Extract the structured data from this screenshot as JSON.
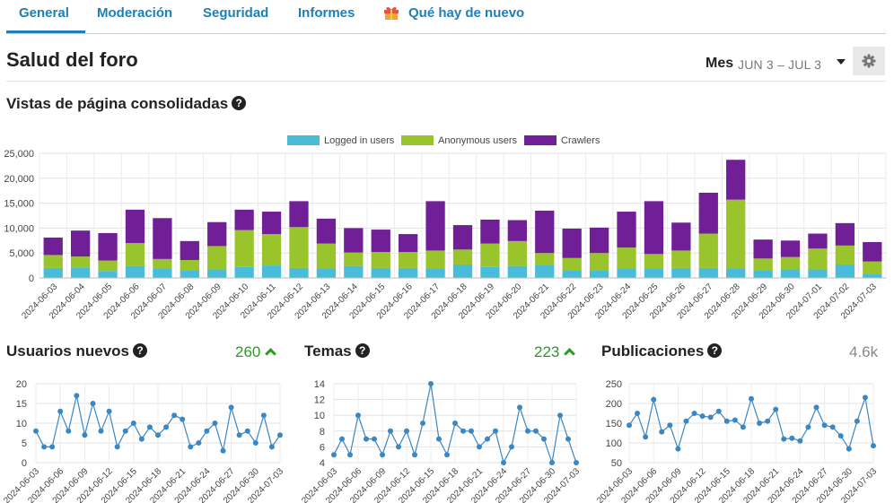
{
  "nav": {
    "tabs": [
      {
        "label": "General",
        "active": true
      },
      {
        "label": "Moderación"
      },
      {
        "label": "Seguridad"
      },
      {
        "label": "Informes"
      },
      {
        "label": "Qué hay de nuevo",
        "icon": "gift-icon"
      }
    ]
  },
  "header": {
    "title": "Salud del foro",
    "period_label": "Mes",
    "date_range": "JUN 3 – JUL 3"
  },
  "colors": {
    "accent": "#1e7fb8",
    "logged_in": "#48bcd8",
    "anonymous": "#9ac42c",
    "crawlers": "#711f96",
    "line": "#3a87c4",
    "trend_up": "#2a9d1f"
  },
  "pageviews": {
    "title": "Vistas de página consolidadas"
  },
  "new_users": {
    "title": "Usuarios nuevos",
    "value": "260",
    "trend": "up"
  },
  "topics": {
    "title": "Temas",
    "value": "223",
    "trend": "up"
  },
  "posts": {
    "title": "Publicaciones",
    "value": "4.6k",
    "trend": "neutral"
  },
  "chart_data": [
    {
      "type": "bar",
      "stacked": true,
      "title": "Vistas de página consolidadas",
      "categories": [
        "2024-06-03",
        "2024-06-04",
        "2024-06-05",
        "2024-06-06",
        "2024-06-07",
        "2024-06-08",
        "2024-06-09",
        "2024-06-10",
        "2024-06-11",
        "2024-06-12",
        "2024-06-13",
        "2024-06-14",
        "2024-06-15",
        "2024-06-16",
        "2024-06-17",
        "2024-06-18",
        "2024-06-19",
        "2024-06-20",
        "2024-06-21",
        "2024-06-22",
        "2024-06-23",
        "2024-06-24",
        "2024-06-25",
        "2024-06-26",
        "2024-06-27",
        "2024-06-28",
        "2024-06-29",
        "2024-06-30",
        "2024-07-01",
        "2024-07-02",
        "2024-07-03"
      ],
      "series": [
        {
          "name": "Logged in users",
          "values": [
            2000,
            2100,
            1400,
            2400,
            1900,
            1600,
            1700,
            2200,
            2500,
            2000,
            1800,
            2400,
            2000,
            2000,
            1900,
            2700,
            2200,
            2400,
            2600,
            1600,
            1600,
            1800,
            1900,
            2000,
            2000,
            1900,
            1600,
            1700,
            1700,
            2700,
            800
          ]
        },
        {
          "name": "Anonymous users",
          "values": [
            2600,
            2200,
            2100,
            4600,
            1900,
            2000,
            4700,
            7400,
            6300,
            8200,
            5100,
            2700,
            3200,
            3200,
            3600,
            3000,
            4700,
            5000,
            2400,
            2400,
            3400,
            4300,
            2900,
            3500,
            6900,
            13800,
            2300,
            2500,
            4200,
            3800,
            2500
          ]
        },
        {
          "name": "Crawlers",
          "values": [
            3500,
            5200,
            5500,
            6700,
            8200,
            3800,
            4800,
            4100,
            4500,
            5200,
            5000,
            4900,
            4500,
            3600,
            9900,
            4900,
            4800,
            4200,
            8500,
            5900,
            5100,
            7200,
            10600,
            5600,
            8200,
            8000,
            3800,
            3300,
            3000,
            4500,
            3900
          ]
        }
      ],
      "legend": "top-center",
      "ylim": [
        0,
        25000
      ],
      "yticks": [
        "0",
        "5,000",
        "10,000",
        "15,000",
        "20,000",
        "25,000"
      ],
      "grid": true
    },
    {
      "type": "line",
      "title": "Usuarios nuevos",
      "x": [
        "2024-06-03",
        "2024-06-04",
        "2024-06-05",
        "2024-06-06",
        "2024-06-07",
        "2024-06-08",
        "2024-06-09",
        "2024-06-10",
        "2024-06-11",
        "2024-06-12",
        "2024-06-13",
        "2024-06-14",
        "2024-06-15",
        "2024-06-16",
        "2024-06-17",
        "2024-06-18",
        "2024-06-19",
        "2024-06-20",
        "2024-06-21",
        "2024-06-22",
        "2024-06-23",
        "2024-06-24",
        "2024-06-25",
        "2024-06-26",
        "2024-06-27",
        "2024-06-28",
        "2024-06-29",
        "2024-06-30",
        "2024-07-01",
        "2024-07-02",
        "2024-07-03"
      ],
      "y": [
        8,
        4,
        4,
        13,
        8,
        17,
        7,
        15,
        8,
        13,
        4,
        8,
        10,
        6,
        9,
        7,
        9,
        12,
        11,
        4,
        5,
        8,
        10,
        3,
        14,
        7,
        8,
        5,
        12,
        4,
        7
      ],
      "xticks": [
        "2024-06-03",
        "2024-06-06",
        "2024-06-09",
        "2024-06-12",
        "2024-06-15",
        "2024-06-18",
        "2024-06-21",
        "2024-06-24",
        "2024-06-27",
        "2024-06-30",
        "2024-07-03"
      ],
      "yticks": [
        "0",
        "5",
        "10",
        "15",
        "20"
      ],
      "ylim": [
        0,
        20
      ]
    },
    {
      "type": "line",
      "title": "Temas",
      "x": [
        "2024-06-03",
        "2024-06-04",
        "2024-06-05",
        "2024-06-06",
        "2024-06-07",
        "2024-06-08",
        "2024-06-09",
        "2024-06-10",
        "2024-06-11",
        "2024-06-12",
        "2024-06-13",
        "2024-06-14",
        "2024-06-15",
        "2024-06-16",
        "2024-06-17",
        "2024-06-18",
        "2024-06-19",
        "2024-06-20",
        "2024-06-21",
        "2024-06-22",
        "2024-06-23",
        "2024-06-24",
        "2024-06-25",
        "2024-06-26",
        "2024-06-27",
        "2024-06-28",
        "2024-06-29",
        "2024-06-30",
        "2024-07-01",
        "2024-07-02",
        "2024-07-03"
      ],
      "y": [
        5,
        7,
        5,
        10,
        7,
        7,
        5,
        8,
        6,
        8,
        5,
        9,
        14,
        7,
        5,
        9,
        8,
        8,
        6,
        7,
        8,
        4,
        6,
        11,
        8,
        8,
        7,
        4,
        10,
        7,
        4
      ],
      "xticks": [
        "2024-06-03",
        "2024-06-06",
        "2024-06-09",
        "2024-06-12",
        "2024-06-15",
        "2024-06-18",
        "2024-06-21",
        "2024-06-24",
        "2024-06-27",
        "2024-06-30",
        "2024-07-03"
      ],
      "yticks": [
        "4",
        "6",
        "8",
        "10",
        "12",
        "14"
      ],
      "ylim": [
        4,
        14
      ]
    },
    {
      "type": "line",
      "title": "Publicaciones",
      "x": [
        "2024-06-03",
        "2024-06-04",
        "2024-06-05",
        "2024-06-06",
        "2024-06-07",
        "2024-06-08",
        "2024-06-09",
        "2024-06-10",
        "2024-06-11",
        "2024-06-12",
        "2024-06-13",
        "2024-06-14",
        "2024-06-15",
        "2024-06-16",
        "2024-06-17",
        "2024-06-18",
        "2024-06-19",
        "2024-06-20",
        "2024-06-21",
        "2024-06-22",
        "2024-06-23",
        "2024-06-24",
        "2024-06-25",
        "2024-06-26",
        "2024-06-27",
        "2024-06-28",
        "2024-06-29",
        "2024-06-30",
        "2024-07-01",
        "2024-07-02",
        "2024-07-03"
      ],
      "y": [
        145,
        175,
        115,
        210,
        128,
        145,
        85,
        155,
        175,
        168,
        165,
        180,
        155,
        158,
        140,
        212,
        150,
        155,
        185,
        110,
        112,
        105,
        140,
        190,
        145,
        140,
        118,
        85,
        155,
        215,
        93
      ],
      "xticks": [
        "2024-06-03",
        "2024-06-06",
        "2024-06-09",
        "2024-06-12",
        "2024-06-15",
        "2024-06-18",
        "2024-06-21",
        "2024-06-24",
        "2024-06-27",
        "2024-06-30",
        "2024-07-03"
      ],
      "yticks": [
        "50",
        "100",
        "150",
        "200",
        "250"
      ],
      "ylim": [
        50,
        250
      ]
    }
  ]
}
